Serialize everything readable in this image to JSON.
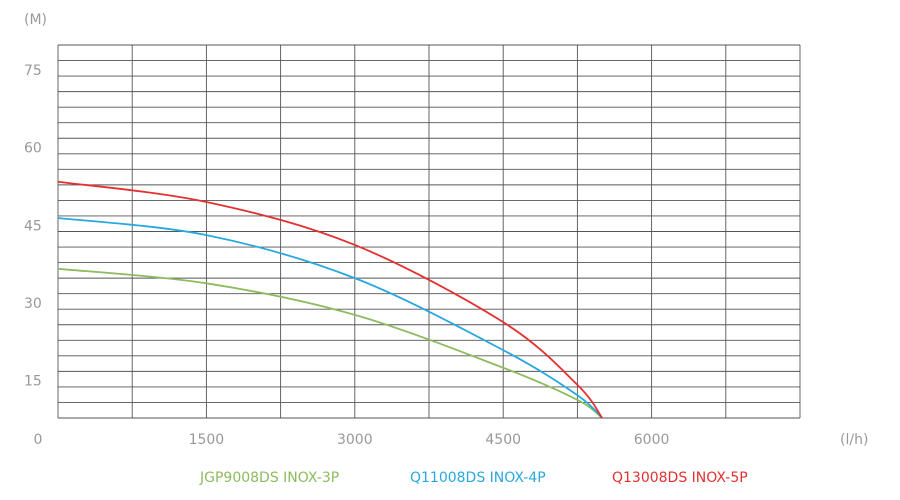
{
  "chart_data": {
    "type": "line",
    "y_label": "(M)",
    "x_label": "(l/h)",
    "x": [
      0,
      1500,
      3000,
      4500,
      5250,
      5500
    ],
    "series": [
      {
        "name": "JGP9008DS  INOX-3P",
        "color": "#8dbb5f",
        "values": [
          36.8,
          34,
          27.9,
          17.7,
          11.5,
          8
        ]
      },
      {
        "name": "Q11008DS  INOX-4P",
        "color": "#29a8e0",
        "values": [
          46.6,
          43.3,
          35,
          21.1,
          12.4,
          8
        ]
      },
      {
        "name": "Q13008DS INOX-5P",
        "color": "#e53030",
        "values": [
          53.6,
          49.7,
          41.4,
          26.5,
          14.4,
          8
        ]
      }
    ],
    "xlim": [
      0,
      7500
    ],
    "ylim": [
      8,
      80
    ],
    "xticks": [
      0,
      1500,
      3000,
      4500,
      6000
    ],
    "yticks": [
      15,
      30,
      45,
      60,
      75
    ],
    "grid": true
  }
}
